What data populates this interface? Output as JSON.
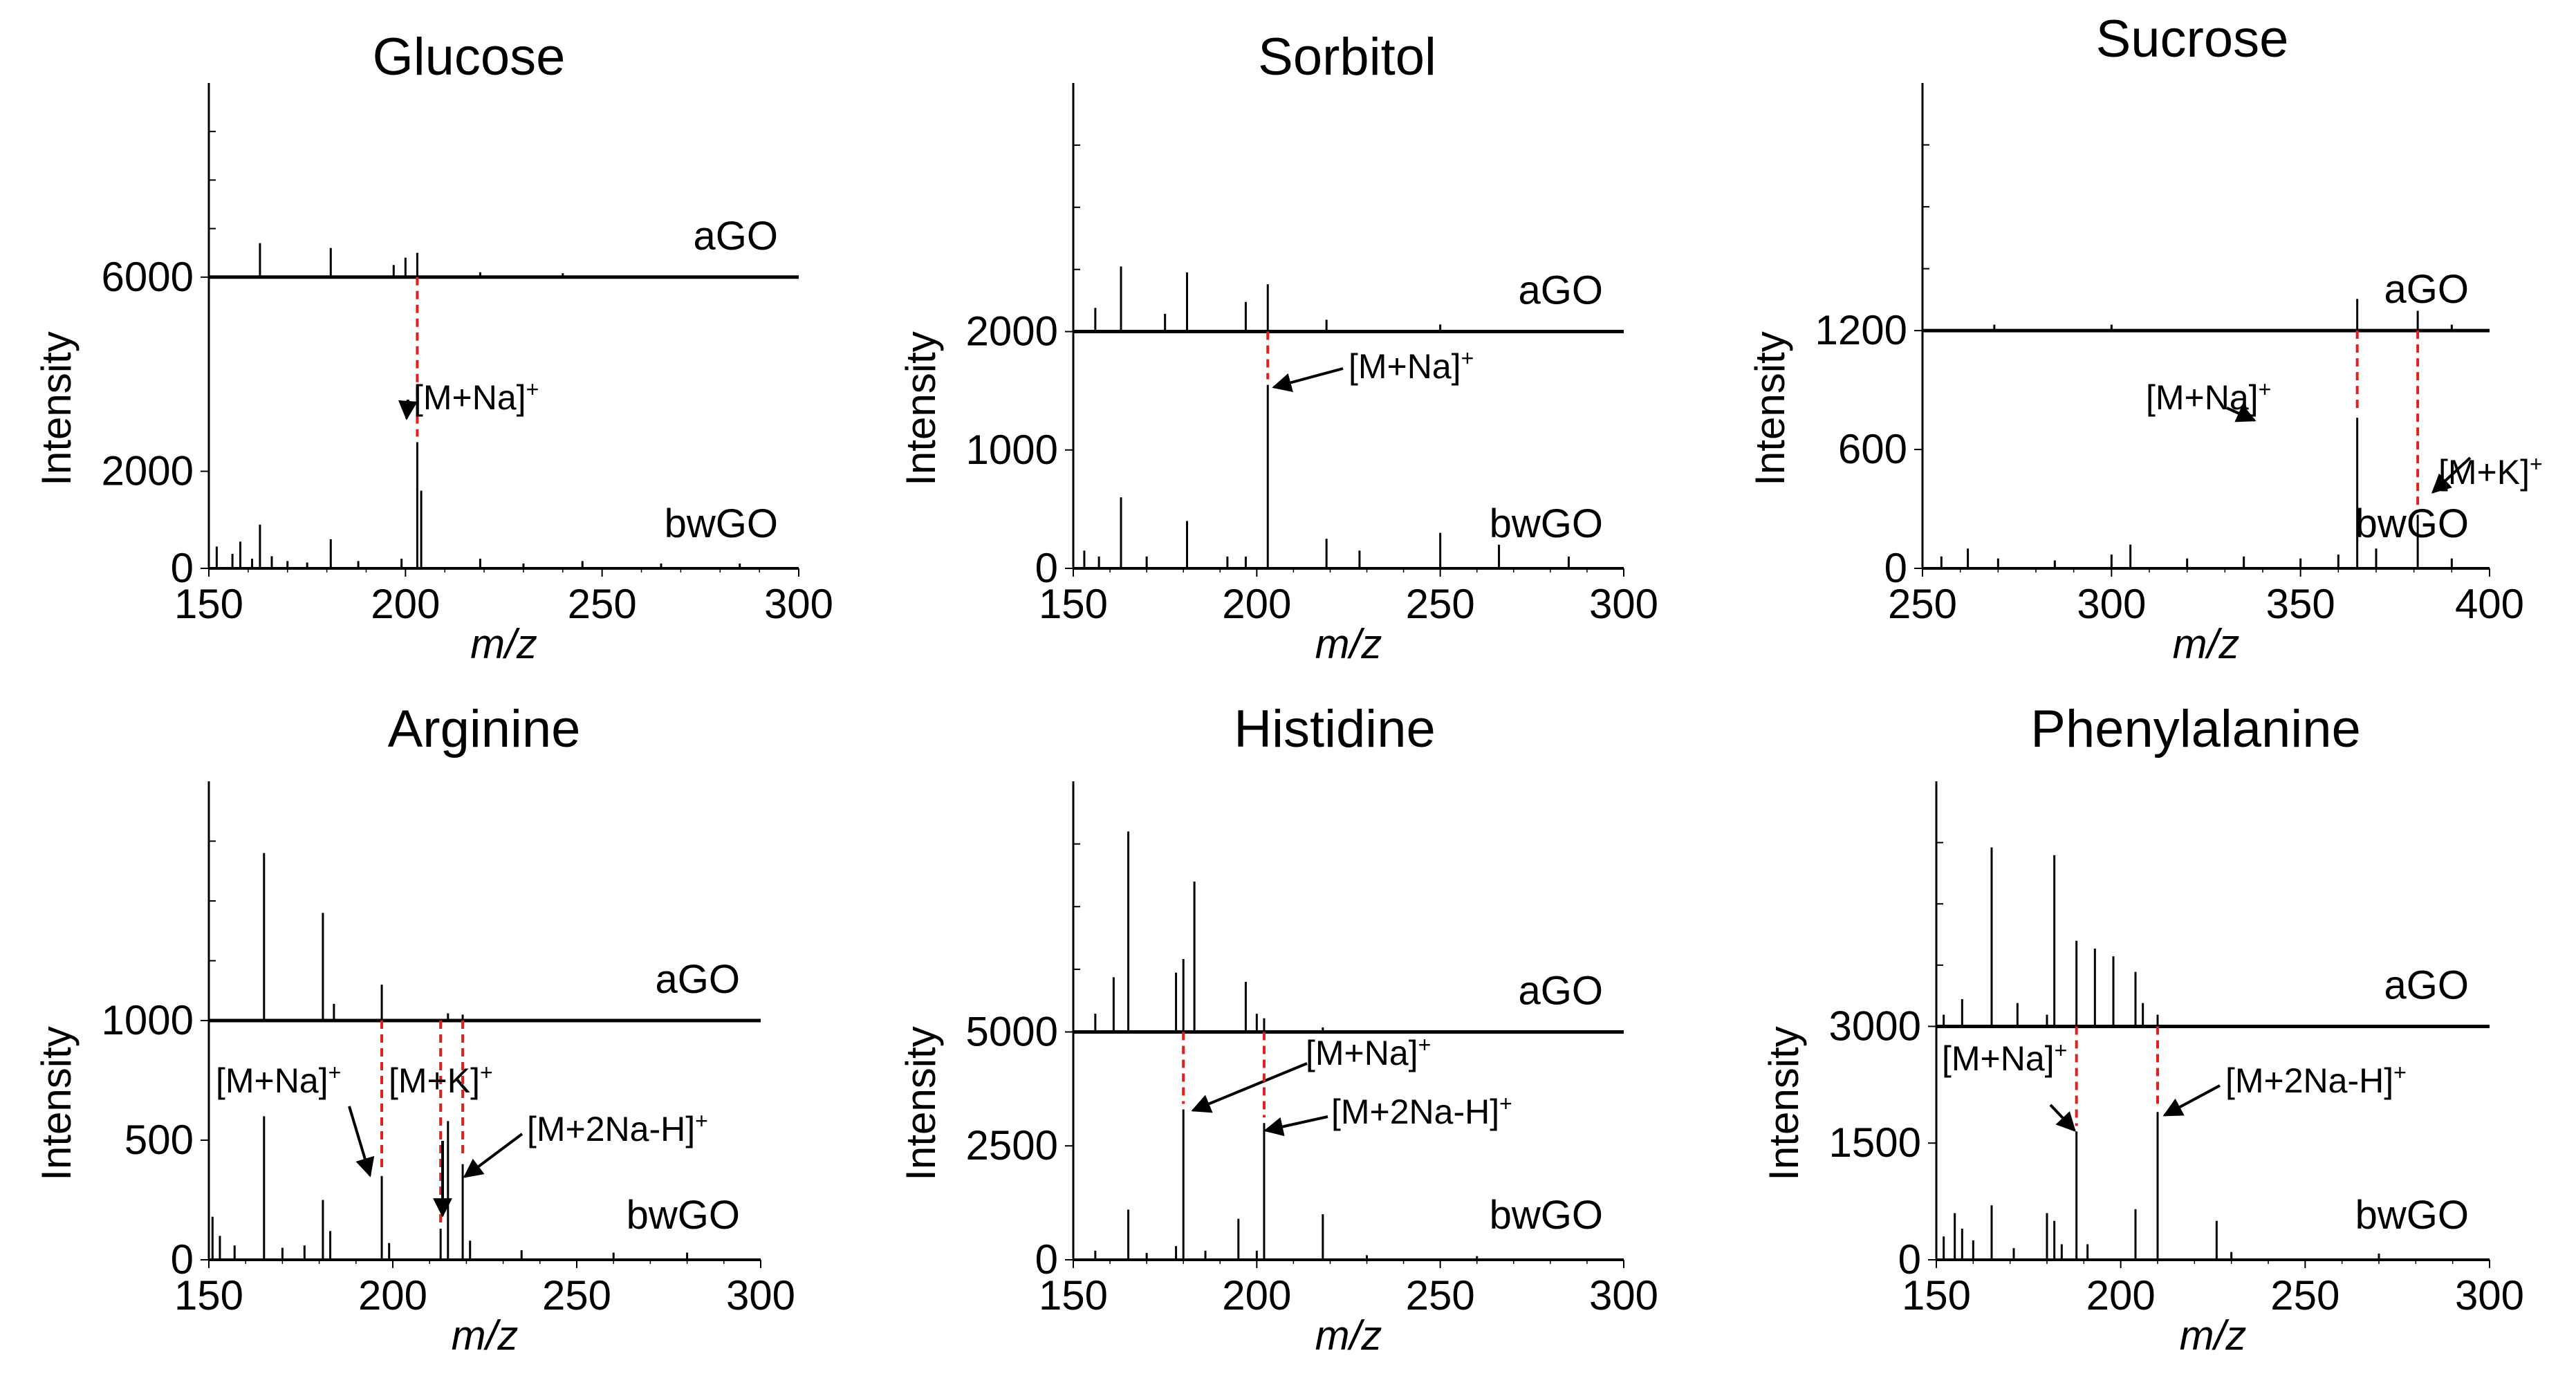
{
  "figure": {
    "y_axis_label": "Intensity",
    "x_axis_label": "m/z",
    "top_trace_label": "aGO",
    "bottom_trace_label": "bwGO"
  },
  "chart_data": [
    {
      "type": "line",
      "title": "Glucose",
      "xlabel": "m/z",
      "ylabel": "Intensity",
      "xlim": [
        150,
        300
      ],
      "xticks": [
        150,
        200,
        250,
        300
      ],
      "yticks": [
        0,
        2000,
        6000
      ],
      "ylim": [
        0,
        10000
      ],
      "offset": 6000,
      "series": [
        {
          "name": "bwGO",
          "peaks": [
            [
              152,
              450
            ],
            [
              156,
              300
            ],
            [
              158,
              550
            ],
            [
              161,
              200
            ],
            [
              163,
              900
            ],
            [
              166,
              250
            ],
            [
              170,
              150
            ],
            [
              175,
              120
            ],
            [
              181,
              600
            ],
            [
              188,
              150
            ],
            [
              199,
              200
            ],
            [
              203,
              2600
            ],
            [
              204,
              1600
            ],
            [
              219,
              200
            ],
            [
              230,
              100
            ],
            [
              245,
              150
            ],
            [
              265,
              100
            ],
            [
              285,
              100
            ]
          ]
        },
        {
          "name": "aGO",
          "peaks": [
            [
              163,
              700
            ],
            [
              181,
              600
            ],
            [
              197,
              250
            ],
            [
              200,
              400
            ],
            [
              203,
              500
            ],
            [
              219,
              100
            ],
            [
              240,
              80
            ]
          ]
        }
      ],
      "annotations": [
        {
          "text": "[M+Na]",
          "sup": "+",
          "mz": 203
        }
      ]
    },
    {
      "type": "line",
      "title": "Sorbitol",
      "xlabel": "m/z",
      "ylabel": "Intensity",
      "xlim": [
        150,
        300
      ],
      "xticks": [
        150,
        200,
        250,
        300
      ],
      "yticks": [
        0,
        1000,
        2000
      ],
      "ylim": [
        0,
        4100
      ],
      "offset": 2000,
      "series": [
        {
          "name": "bwGO",
          "peaks": [
            [
              153,
              150
            ],
            [
              157,
              100
            ],
            [
              163,
              600
            ],
            [
              170,
              100
            ],
            [
              181,
              400
            ],
            [
              192,
              100
            ],
            [
              197,
              100
            ],
            [
              203,
              1550
            ],
            [
              219,
              250
            ],
            [
              228,
              150
            ],
            [
              250,
              300
            ],
            [
              266,
              200
            ],
            [
              285,
              100
            ]
          ]
        },
        {
          "name": "aGO",
          "peaks": [
            [
              156,
              200
            ],
            [
              163,
              550
            ],
            [
              175,
              150
            ],
            [
              181,
              500
            ],
            [
              197,
              250
            ],
            [
              203,
              400
            ],
            [
              219,
              100
            ],
            [
              250,
              60
            ]
          ]
        }
      ],
      "annotations": [
        {
          "text": "[M+Na]",
          "sup": "+",
          "mz": 203
        }
      ]
    },
    {
      "type": "line",
      "title": "Sucrose",
      "xlabel": "m/z",
      "ylabel": "Intensity",
      "xlim": [
        250,
        400
      ],
      "xticks": [
        250,
        300,
        350,
        400
      ],
      "yticks": [
        0,
        600,
        1200
      ],
      "ylim": [
        0,
        2450
      ],
      "offset": 1200,
      "series": [
        {
          "name": "bwGO",
          "peaks": [
            [
              255,
              60
            ],
            [
              262,
              100
            ],
            [
              270,
              50
            ],
            [
              285,
              40
            ],
            [
              300,
              70
            ],
            [
              305,
              120
            ],
            [
              320,
              50
            ],
            [
              335,
              60
            ],
            [
              350,
              50
            ],
            [
              360,
              70
            ],
            [
              365,
              760
            ],
            [
              370,
              100
            ],
            [
              381,
              270
            ],
            [
              390,
              50
            ]
          ]
        },
        {
          "name": "aGO",
          "peaks": [
            [
              269,
              30
            ],
            [
              300,
              30
            ],
            [
              365,
              160
            ],
            [
              381,
              100
            ],
            [
              390,
              30
            ]
          ]
        }
      ],
      "annotations": [
        {
          "text": "[M+Na]",
          "sup": "+",
          "mz": 365
        },
        {
          "text": "[M+K]",
          "sup": "+",
          "mz": 381
        }
      ]
    },
    {
      "type": "line",
      "title": "Arginine",
      "xlabel": "m/z",
      "ylabel": "Intensity",
      "xlim": [
        150,
        300
      ],
      "xticks": [
        150,
        200,
        250,
        300
      ],
      "yticks": [
        0,
        500,
        1000
      ],
      "ylim": [
        0,
        2000
      ],
      "offset": 1000,
      "series": [
        {
          "name": "bwGO",
          "peaks": [
            [
              151,
              180
            ],
            [
              153,
              100
            ],
            [
              157,
              60
            ],
            [
              165,
              600
            ],
            [
              170,
              50
            ],
            [
              176,
              60
            ],
            [
              181,
              250
            ],
            [
              183,
              120
            ],
            [
              197,
              350
            ],
            [
              199,
              70
            ],
            [
              213,
              130
            ],
            [
              215,
              580
            ],
            [
              219,
              400
            ],
            [
              221,
              80
            ],
            [
              235,
              40
            ],
            [
              260,
              30
            ],
            [
              280,
              30
            ]
          ]
        },
        {
          "name": "aGO",
          "peaks": [
            [
              165,
              700
            ],
            [
              181,
              450
            ],
            [
              184,
              70
            ],
            [
              197,
              150
            ],
            [
              215,
              30
            ],
            [
              219,
              25
            ]
          ]
        }
      ],
      "annotations": [
        {
          "text": "[M+Na]",
          "sup": "+",
          "mz": 197
        },
        {
          "text": "[M+K]",
          "sup": "+",
          "mz": 213
        },
        {
          "text": "[M+2Na-H]",
          "sup": "+",
          "mz": 219
        }
      ]
    },
    {
      "type": "line",
      "title": "Histidine",
      "xlabel": "m/z",
      "ylabel": "Intensity",
      "xlim": [
        150,
        300
      ],
      "xticks": [
        150,
        200,
        250,
        300
      ],
      "yticks": [
        0,
        2500,
        5000
      ],
      "ylim": [
        0,
        10500
      ],
      "offset": 5000,
      "series": [
        {
          "name": "bwGO",
          "peaks": [
            [
              156,
              200
            ],
            [
              165,
              1100
            ],
            [
              170,
              150
            ],
            [
              178,
              300
            ],
            [
              180,
              3300
            ],
            [
              186,
              200
            ],
            [
              195,
              900
            ],
            [
              200,
              200
            ],
            [
              202,
              3000
            ],
            [
              218,
              1000
            ],
            [
              230,
              100
            ],
            [
              260,
              80
            ]
          ]
        },
        {
          "name": "aGO",
          "peaks": [
            [
              156,
              400
            ],
            [
              161,
              1200
            ],
            [
              165,
              4400
            ],
            [
              178,
              1300
            ],
            [
              180,
              1600
            ],
            [
              183,
              3300
            ],
            [
              197,
              1100
            ],
            [
              200,
              400
            ],
            [
              202,
              300
            ],
            [
              218,
              100
            ]
          ]
        }
      ],
      "annotations": [
        {
          "text": "[M+Na]",
          "sup": "+",
          "mz": 180
        },
        {
          "text": "[M+2Na-H]",
          "sup": "+",
          "mz": 202
        }
      ]
    },
    {
      "type": "line",
      "title": "Phenylalanine",
      "xlabel": "m/z",
      "ylabel": "Intensity",
      "xlim": [
        150,
        300
      ],
      "xticks": [
        150,
        200,
        250,
        300
      ],
      "yticks": [
        0,
        1500,
        3000
      ],
      "ylim": [
        0,
        6150
      ],
      "offset": 3000,
      "series": [
        {
          "name": "bwGO",
          "peaks": [
            [
              152,
              300
            ],
            [
              155,
              600
            ],
            [
              157,
              400
            ],
            [
              160,
              250
            ],
            [
              165,
              700
            ],
            [
              171,
              150
            ],
            [
              180,
              600
            ],
            [
              182,
              500
            ],
            [
              184,
              200
            ],
            [
              188,
              1650
            ],
            [
              191,
              200
            ],
            [
              204,
              650
            ],
            [
              210,
              1900
            ],
            [
              226,
              500
            ],
            [
              230,
              100
            ],
            [
              270,
              80
            ]
          ]
        },
        {
          "name": "aGO",
          "peaks": [
            [
              152,
              150
            ],
            [
              157,
              350
            ],
            [
              165,
              2300
            ],
            [
              172,
              300
            ],
            [
              180,
              150
            ],
            [
              182,
              2200
            ],
            [
              188,
              1100
            ],
            [
              193,
              1000
            ],
            [
              198,
              900
            ],
            [
              204,
              700
            ],
            [
              206,
              300
            ],
            [
              210,
              150
            ]
          ]
        }
      ],
      "annotations": [
        {
          "text": "[M+Na]",
          "sup": "+",
          "mz": 188
        },
        {
          "text": "[M+2Na-H]",
          "sup": "+",
          "mz": 210
        }
      ]
    }
  ]
}
